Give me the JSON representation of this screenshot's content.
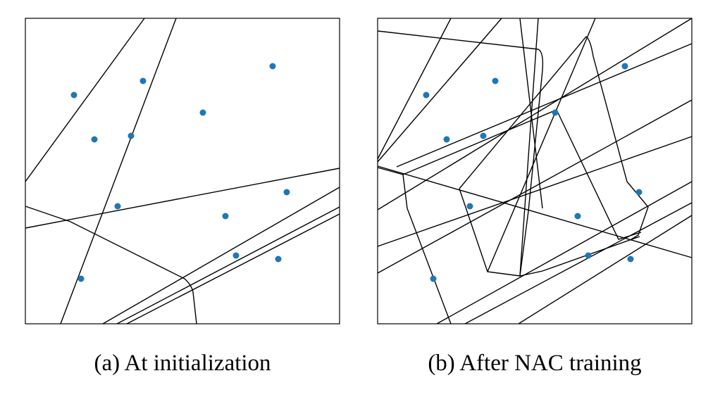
{
  "figure": {
    "panels": [
      {
        "caption": "(a) At initialization",
        "point_color": "#1f77b4",
        "line_color": "#000000"
      },
      {
        "caption": "(b) After NAC training",
        "point_color": "#1f77b4",
        "line_color": "#000000"
      }
    ]
  }
}
